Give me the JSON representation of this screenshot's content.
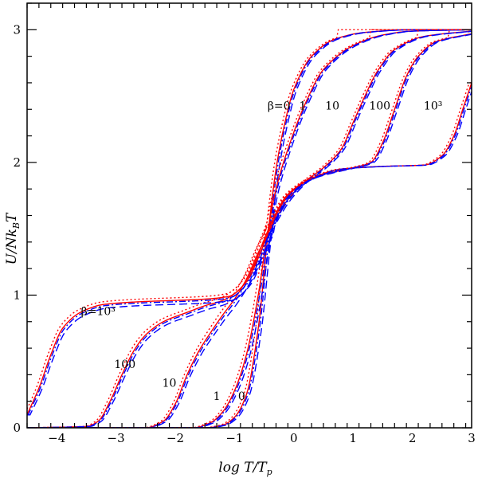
{
  "chart_data": {
    "type": "line",
    "title": "",
    "xlabel": "log T/T",
    "xlabel_sub": "p",
    "ylabel": "U/Nk",
    "ylabel_sub": "B",
    "ylabel_tail": "T",
    "xlim": [
      -4.5,
      3.0
    ],
    "ylim": [
      0,
      3.2
    ],
    "xticks": [
      -4,
      -3,
      -2,
      -1,
      0,
      1,
      2,
      3
    ],
    "xtick_labels": [
      "−4",
      "−3",
      "−2",
      "−1",
      "0",
      "1",
      "2",
      "3"
    ],
    "yticks": [
      0,
      1,
      2,
      3
    ],
    "ytick_labels": [
      "0",
      "1",
      "2",
      "3"
    ],
    "grid": false,
    "line_styles": [
      {
        "name": "solid",
        "color": "#ff0000",
        "dash": ""
      },
      {
        "name": "dashed",
        "color": "#0000ff",
        "dash": "10,5"
      },
      {
        "name": "dotted",
        "color": "#ff0000",
        "dash": "2,3"
      },
      {
        "name": "dash-dot",
        "color": "#0000ff",
        "dash": "8,3,2,3"
      }
    ],
    "series": [
      {
        "name": "β=0",
        "points": [
          [
            -4.5,
            0
          ],
          [
            -1.5,
            0
          ],
          [
            -1.2,
            0.02
          ],
          [
            -1.0,
            0.08
          ],
          [
            -0.8,
            0.25
          ],
          [
            -0.6,
            0.75
          ],
          [
            -0.45,
            1.4
          ],
          [
            -0.3,
            1.95
          ],
          [
            -0.15,
            2.3
          ],
          [
            0,
            2.55
          ],
          [
            0.3,
            2.8
          ],
          [
            0.7,
            2.93
          ],
          [
            1.2,
            2.98
          ],
          [
            2,
            3.0
          ],
          [
            3,
            3.0
          ]
        ]
      },
      {
        "name": "β=1",
        "points": [
          [
            -4.5,
            0
          ],
          [
            -1.7,
            0
          ],
          [
            -1.4,
            0.04
          ],
          [
            -1.2,
            0.12
          ],
          [
            -1.0,
            0.28
          ],
          [
            -0.8,
            0.55
          ],
          [
            -0.6,
            1.0
          ],
          [
            -0.45,
            1.45
          ],
          [
            -0.3,
            1.8
          ],
          [
            -0.1,
            2.1
          ],
          [
            0.2,
            2.45
          ],
          [
            0.5,
            2.7
          ],
          [
            1.0,
            2.88
          ],
          [
            1.5,
            2.96
          ],
          [
            2,
            2.99
          ],
          [
            3,
            3.0
          ]
        ]
      },
      {
        "name": "β=10",
        "points": [
          [
            -4.5,
            0
          ],
          [
            -2.5,
            0
          ],
          [
            -2.2,
            0.05
          ],
          [
            -2.0,
            0.18
          ],
          [
            -1.8,
            0.4
          ],
          [
            -1.6,
            0.58
          ],
          [
            -1.4,
            0.72
          ],
          [
            -1.2,
            0.85
          ],
          [
            -1.0,
            0.97
          ],
          [
            -0.8,
            1.12
          ],
          [
            -0.6,
            1.32
          ],
          [
            -0.45,
            1.45
          ],
          [
            -0.3,
            1.58
          ],
          [
            -0.1,
            1.72
          ],
          [
            0.2,
            1.86
          ],
          [
            0.5,
            1.96
          ],
          [
            0.8,
            2.1
          ],
          [
            1.0,
            2.3
          ],
          [
            1.2,
            2.5
          ],
          [
            1.4,
            2.68
          ],
          [
            1.7,
            2.85
          ],
          [
            2.2,
            2.95
          ],
          [
            3,
            2.99
          ]
        ]
      },
      {
        "name": "β=100",
        "points": [
          [
            -4.5,
            0
          ],
          [
            -3.5,
            0.01
          ],
          [
            -3.3,
            0.05
          ],
          [
            -3.1,
            0.2
          ],
          [
            -2.9,
            0.4
          ],
          [
            -2.7,
            0.58
          ],
          [
            -2.5,
            0.7
          ],
          [
            -2.2,
            0.8
          ],
          [
            -1.8,
            0.87
          ],
          [
            -1.5,
            0.92
          ],
          [
            -1.2,
            0.96
          ],
          [
            -0.9,
            1.05
          ],
          [
            -0.7,
            1.2
          ],
          [
            -0.5,
            1.42
          ],
          [
            -0.3,
            1.62
          ],
          [
            -0.1,
            1.76
          ],
          [
            0.3,
            1.88
          ],
          [
            0.7,
            1.93
          ],
          [
            1.0,
            1.96
          ],
          [
            1.3,
            2.0
          ],
          [
            1.5,
            2.15
          ],
          [
            1.7,
            2.4
          ],
          [
            1.9,
            2.65
          ],
          [
            2.1,
            2.8
          ],
          [
            2.4,
            2.91
          ],
          [
            3,
            2.97
          ]
        ]
      },
      {
        "name": "β=10³",
        "points": [
          [
            -4.5,
            0.1
          ],
          [
            -4.3,
            0.3
          ],
          [
            -4.1,
            0.55
          ],
          [
            -3.9,
            0.75
          ],
          [
            -3.6,
            0.87
          ],
          [
            -3.2,
            0.93
          ],
          [
            -2.6,
            0.95
          ],
          [
            -2.0,
            0.96
          ],
          [
            -1.5,
            0.97
          ],
          [
            -1.1,
            0.99
          ],
          [
            -0.8,
            1.1
          ],
          [
            -0.6,
            1.28
          ],
          [
            -0.45,
            1.45
          ],
          [
            -0.3,
            1.6
          ],
          [
            -0.1,
            1.75
          ],
          [
            0.3,
            1.88
          ],
          [
            0.8,
            1.95
          ],
          [
            1.5,
            1.97
          ],
          [
            2.2,
            1.98
          ],
          [
            2.5,
            2.05
          ],
          [
            2.7,
            2.2
          ],
          [
            2.85,
            2.4
          ],
          [
            3,
            2.6
          ]
        ]
      }
    ],
    "annotations": [
      {
        "text": "β=0",
        "x": -0.25,
        "y": 2.4
      },
      {
        "text": "1",
        "x": 0.15,
        "y": 2.4
      },
      {
        "text": "10",
        "x": 0.65,
        "y": 2.4
      },
      {
        "text": "100",
        "x": 1.45,
        "y": 2.4
      },
      {
        "text": "10³",
        "x": 2.35,
        "y": 2.4
      },
      {
        "text": "β=10³",
        "x": -3.3,
        "y": 0.85
      },
      {
        "text": "100",
        "x": -2.85,
        "y": 0.45
      },
      {
        "text": "10",
        "x": -2.1,
        "y": 0.31
      },
      {
        "text": "1",
        "x": -1.3,
        "y": 0.21
      },
      {
        "text": "0",
        "x": -0.88,
        "y": 0.21
      }
    ]
  }
}
